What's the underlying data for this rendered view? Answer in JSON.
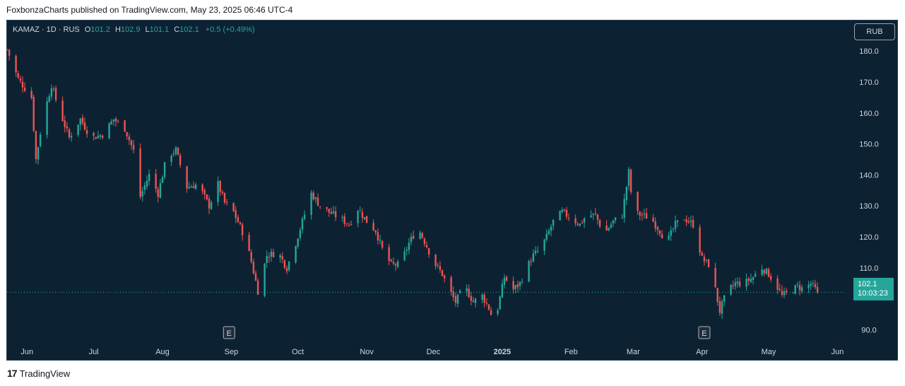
{
  "publication": "FoxbonzaCharts published on TradingView.com, May 23, 2025 06:46 UTC-4",
  "legend": {
    "symbol": "KAMAZ · 1D · RUS",
    "o_label": "O",
    "o_value": "101.2",
    "h_label": "H",
    "h_value": "102.9",
    "l_label": "L",
    "l_value": "101.1",
    "c_label": "C",
    "c_value": "102.1",
    "change": "+0.5 (+0.49%)"
  },
  "currency_button": "RUB",
  "last_price": {
    "value": "102.1",
    "countdown": "10:03:23"
  },
  "footer": {
    "brand": "TradingView",
    "logo": "tv-logo-icon"
  },
  "colors": {
    "up": "#26a69a",
    "down": "#ef5350",
    "background": "#0c2233"
  },
  "chart_data": {
    "type": "candlestick",
    "title": "KAMAZ · 1D · RUS",
    "y_range": [
      86,
      183
    ],
    "y_ticks": [
      180.0,
      170.0,
      160.0,
      150.0,
      140.0,
      130.0,
      120.0,
      110.0,
      90.0
    ],
    "y_tick_labels": [
      "180.0",
      "170.0",
      "160.0",
      "150.0",
      "140.0",
      "130.0",
      "120.0",
      "110.0",
      "90.0"
    ],
    "x_range": [
      "2024-05-23",
      "2025-06-05"
    ],
    "x_ticks": [
      {
        "date": "2024-06-01",
        "label": "Jun",
        "bold": false
      },
      {
        "date": "2024-07-01",
        "label": "Jul",
        "bold": false
      },
      {
        "date": "2024-08-01",
        "label": "Aug",
        "bold": false
      },
      {
        "date": "2024-09-01",
        "label": "Sep",
        "bold": false
      },
      {
        "date": "2024-10-01",
        "label": "Oct",
        "bold": false
      },
      {
        "date": "2024-11-01",
        "label": "Nov",
        "bold": false
      },
      {
        "date": "2024-12-01",
        "label": "Dec",
        "bold": false
      },
      {
        "date": "2025-01-01",
        "label": "2025",
        "bold": true
      },
      {
        "date": "2025-02-01",
        "label": "Feb",
        "bold": false
      },
      {
        "date": "2025-03-01",
        "label": "Mar",
        "bold": false
      },
      {
        "date": "2025-04-01",
        "label": "Apr",
        "bold": false
      },
      {
        "date": "2025-05-01",
        "label": "May",
        "bold": false
      },
      {
        "date": "2025-06-01",
        "label": "Jun",
        "bold": false
      }
    ],
    "earnings_markers": [
      {
        "date": "2024-08-31",
        "label": "E"
      },
      {
        "date": "2025-04-02",
        "label": "E"
      }
    ],
    "last_close": 102.1,
    "price_path": [
      [
        "2024-05-23",
        180.5
      ],
      [
        "2024-05-28",
        171
      ],
      [
        "2024-06-03",
        165
      ],
      [
        "2024-06-05",
        145
      ],
      [
        "2024-06-08",
        158
      ],
      [
        "2024-06-12",
        169
      ],
      [
        "2024-06-15",
        162
      ],
      [
        "2024-06-20",
        152
      ],
      [
        "2024-06-25",
        158
      ],
      [
        "2024-06-30",
        152
      ],
      [
        "2024-07-05",
        153
      ],
      [
        "2024-07-10",
        158
      ],
      [
        "2024-07-15",
        155
      ],
      [
        "2024-07-20",
        146
      ],
      [
        "2024-07-22",
        133
      ],
      [
        "2024-07-26",
        140
      ],
      [
        "2024-07-30",
        134
      ],
      [
        "2024-08-03",
        146
      ],
      [
        "2024-08-07",
        148
      ],
      [
        "2024-08-12",
        136
      ],
      [
        "2024-08-17",
        137
      ],
      [
        "2024-08-22",
        130
      ],
      [
        "2024-08-26",
        137
      ],
      [
        "2024-08-29",
        131
      ],
      [
        "2024-09-02",
        128
      ],
      [
        "2024-09-07",
        120
      ],
      [
        "2024-09-10",
        112
      ],
      [
        "2024-09-13",
        102.5
      ],
      [
        "2024-09-17",
        114
      ],
      [
        "2024-09-22",
        115
      ],
      [
        "2024-09-26",
        110
      ],
      [
        "2024-09-30",
        118
      ],
      [
        "2024-10-03",
        125
      ],
      [
        "2024-10-07",
        134
      ],
      [
        "2024-10-11",
        130
      ],
      [
        "2024-10-15",
        128
      ],
      [
        "2024-10-20",
        126
      ],
      [
        "2024-10-24",
        124
      ],
      [
        "2024-10-28",
        129
      ],
      [
        "2024-11-01",
        125
      ],
      [
        "2024-11-05",
        122
      ],
      [
        "2024-11-08",
        116
      ],
      [
        "2024-11-12",
        111
      ],
      [
        "2024-11-16",
        111
      ],
      [
        "2024-11-20",
        118
      ],
      [
        "2024-11-24",
        123
      ],
      [
        "2024-11-28",
        117
      ],
      [
        "2024-12-01",
        112
      ],
      [
        "2024-12-05",
        108
      ],
      [
        "2024-12-08",
        103
      ],
      [
        "2024-12-11",
        99
      ],
      [
        "2024-12-15",
        104
      ],
      [
        "2024-12-19",
        99
      ],
      [
        "2024-12-23",
        101
      ],
      [
        "2024-12-26",
        97
      ],
      [
        "2024-12-28",
        93
      ],
      [
        "2024-12-30",
        97
      ],
      [
        "2025-01-02",
        107
      ],
      [
        "2025-01-06",
        103
      ],
      [
        "2025-01-09",
        105
      ],
      [
        "2025-01-12",
        110
      ],
      [
        "2025-01-15",
        114
      ],
      [
        "2025-01-18",
        116
      ],
      [
        "2025-01-21",
        120
      ],
      [
        "2025-01-24",
        125
      ],
      [
        "2025-01-28",
        128
      ],
      [
        "2025-02-01",
        126
      ],
      [
        "2025-02-05",
        124
      ],
      [
        "2025-02-08",
        127
      ],
      [
        "2025-02-12",
        127
      ],
      [
        "2025-02-16",
        121
      ],
      [
        "2025-02-20",
        125
      ],
      [
        "2025-02-24",
        127
      ],
      [
        "2025-02-27",
        141
      ],
      [
        "2025-03-01",
        128
      ],
      [
        "2025-03-05",
        127
      ],
      [
        "2025-03-09",
        126
      ],
      [
        "2025-03-13",
        122
      ],
      [
        "2025-03-16",
        118
      ],
      [
        "2025-03-20",
        124
      ],
      [
        "2025-03-24",
        126
      ],
      [
        "2025-03-28",
        124
      ],
      [
        "2025-04-01",
        113
      ],
      [
        "2025-04-04",
        111
      ],
      [
        "2025-04-07",
        103
      ],
      [
        "2025-04-09",
        96
      ],
      [
        "2025-04-12",
        102
      ],
      [
        "2025-04-16",
        105
      ],
      [
        "2025-04-20",
        105
      ],
      [
        "2025-04-24",
        107
      ],
      [
        "2025-04-28",
        110
      ],
      [
        "2025-05-01",
        108
      ],
      [
        "2025-05-04",
        105
      ],
      [
        "2025-05-07",
        101
      ],
      [
        "2025-05-10",
        102
      ],
      [
        "2025-05-14",
        104
      ],
      [
        "2025-05-17",
        103
      ],
      [
        "2025-05-20",
        105
      ],
      [
        "2025-05-23",
        102.1
      ]
    ]
  }
}
